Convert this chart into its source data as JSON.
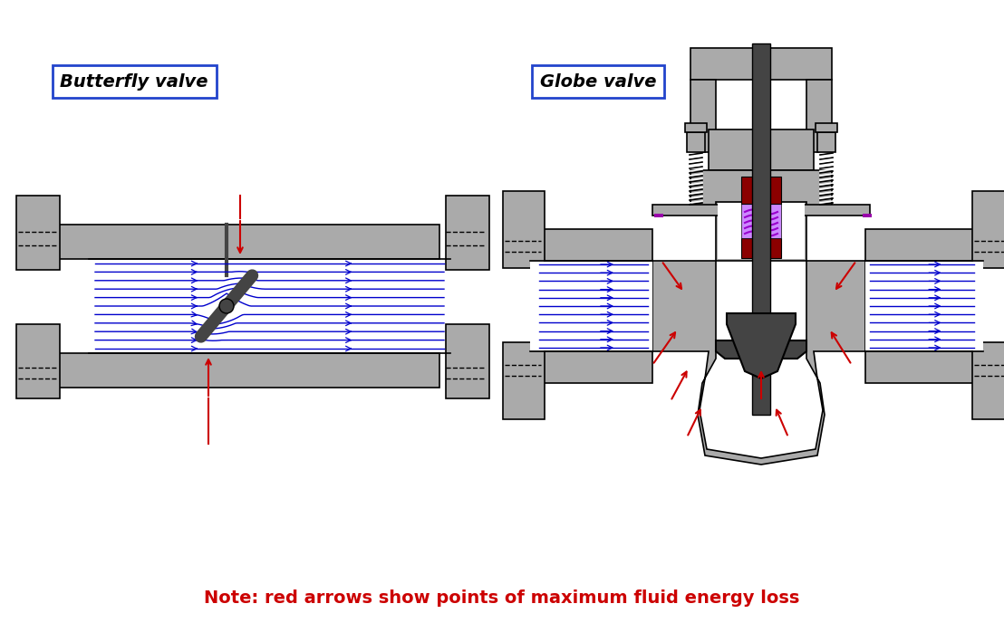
{
  "bg_color": "#ffffff",
  "gray": "#aaaaaa",
  "dgray": "#777777",
  "ddgray": "#444444",
  "blue": "#0000cc",
  "red": "#cc0000",
  "darkred": "#8b0000",
  "purple": "#cc88ff",
  "purple_line": "#9900cc",
  "label_butterfly": "Butterfly valve",
  "label_globe": "Globe valve",
  "note_text": "Note: red arrows show points of maximum fluid energy loss",
  "fig_width": 11.08,
  "fig_height": 6.88
}
